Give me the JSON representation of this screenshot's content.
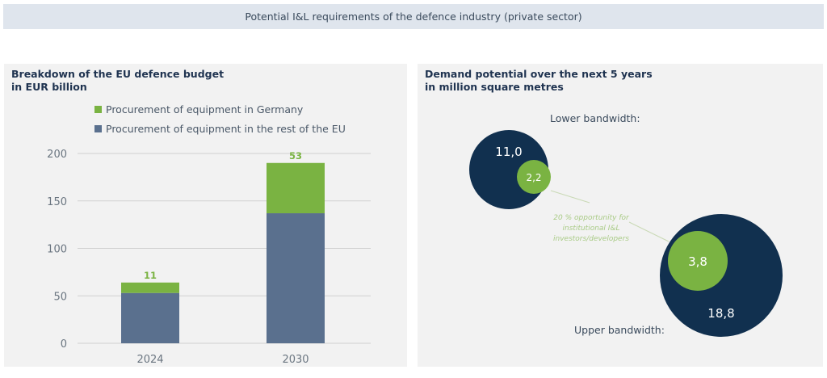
{
  "header": {
    "title": "Potential I&L requirements of the defence industry (private sector)"
  },
  "left_panel": {
    "title_line1": "Breakdown of the EU defence budget",
    "title_line2": "in EUR billion"
  },
  "right_panel": {
    "title_line1": "Demand potential over the next 5 years",
    "title_line2": "in million square metres",
    "lower_label": "Lower bandwidth:",
    "upper_label": "Upper bandwidth:",
    "annotation": [
      "20 % opportunity for",
      "institutional I&L",
      "investors/developers"
    ]
  },
  "colors": {
    "green": "#7ab342",
    "slate": "#5a708e",
    "navy": "#11304f",
    "grid": "#d0d0d0",
    "axis_text": "#6a7580"
  },
  "chart_data": [
    {
      "type": "bar",
      "stacked": true,
      "title": "Breakdown of the EU defence budget",
      "subtitle": "in EUR billion",
      "categories": [
        "2024",
        "2030"
      ],
      "series": [
        {
          "name": "Procurement of equipment in the rest of the EU",
          "color": "#5a708e",
          "values": [
            53,
            137
          ]
        },
        {
          "name": "Procurement of equipment in Germany",
          "color": "#7ab342",
          "values": [
            11,
            53
          ]
        }
      ],
      "data_labels": [
        "11",
        "53"
      ],
      "yticks": [
        0,
        50,
        100,
        150,
        200
      ],
      "ylim": [
        0,
        200
      ],
      "grid": true,
      "legend": "top"
    },
    {
      "type": "bubble",
      "title": "Demand potential over the next 5 years",
      "subtitle": "in million square metres",
      "groups": [
        {
          "name": "Lower bandwidth",
          "total": 11.0,
          "total_label": "11,0",
          "opportunity": 2.2,
          "opportunity_label": "2,2"
        },
        {
          "name": "Upper bandwidth",
          "total": 18.8,
          "total_label": "18,8",
          "opportunity": 3.8,
          "opportunity_label": "3,8"
        }
      ],
      "annotation": "20 % opportunity for institutional I&L investors/developers"
    }
  ]
}
